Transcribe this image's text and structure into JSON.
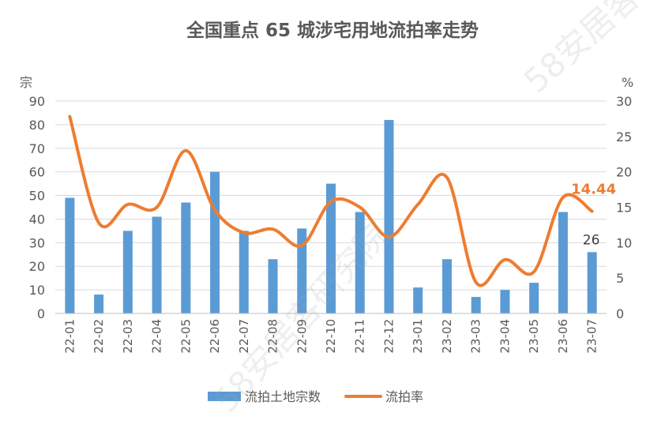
{
  "chart_data": {
    "type": "bar",
    "title": "全国重点 65 城涉宅用地流拍率走势",
    "left_axis_label": "宗",
    "right_axis_label": "%",
    "categories": [
      "22-01",
      "22-02",
      "22-03",
      "22-04",
      "22-05",
      "22-06",
      "22-07",
      "22-08",
      "22-09",
      "22-10",
      "22-11",
      "22-12",
      "23-01",
      "23-02",
      "23-03",
      "23-04",
      "23-05",
      "23-06",
      "23-07"
    ],
    "series": [
      {
        "name": "流拍土地宗数",
        "type": "bar",
        "axis": "left",
        "color": "#5b9bd5",
        "values": [
          49,
          8,
          35,
          41,
          47,
          60,
          35,
          23,
          36,
          55,
          43,
          82,
          11,
          23,
          7,
          10,
          13,
          43,
          26
        ]
      },
      {
        "name": "流拍率",
        "type": "line",
        "axis": "right",
        "color": "#ed7d31",
        "values": [
          27.8,
          12.8,
          15.4,
          15.0,
          23.0,
          14.6,
          11.4,
          11.9,
          9.6,
          15.8,
          15.0,
          10.8,
          15.4,
          19.2,
          4.4,
          7.6,
          5.9,
          16.4,
          14.44
        ]
      }
    ],
    "left_ylim": [
      0,
      90
    ],
    "left_yticks": [
      0,
      10,
      20,
      30,
      40,
      50,
      60,
      70,
      80,
      90
    ],
    "right_ylim": [
      0,
      30
    ],
    "right_yticks": [
      0,
      5,
      10,
      15,
      20,
      25,
      30
    ],
    "annotations": [
      {
        "text": "26",
        "series": "流拍土地宗数",
        "category": "23-07"
      },
      {
        "text": "14.44",
        "series": "流拍率",
        "category": "23-07"
      }
    ],
    "legend_position": "bottom",
    "grid": true,
    "watermark": "58安居客研究院"
  }
}
